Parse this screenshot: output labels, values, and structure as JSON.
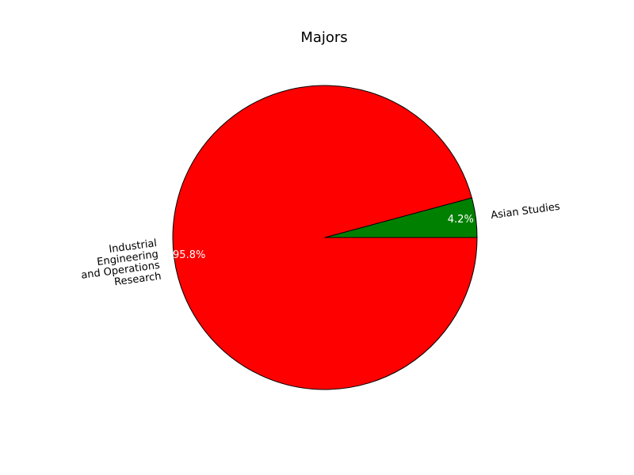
{
  "chart_data": {
    "type": "pie",
    "title": "Majors",
    "slices": [
      {
        "label": "Asian Studies",
        "value": 4.2,
        "pct_label": "4.2%",
        "color": "#008000"
      },
      {
        "label": "Industrial\nEngineering\nand Operations\nResearch",
        "value": 95.8,
        "pct_label": "95.8%",
        "color": "#ff0000"
      }
    ],
    "start_angle": 0,
    "direction": "counterclockwise",
    "edge_color": "#000000",
    "legend": "none"
  }
}
